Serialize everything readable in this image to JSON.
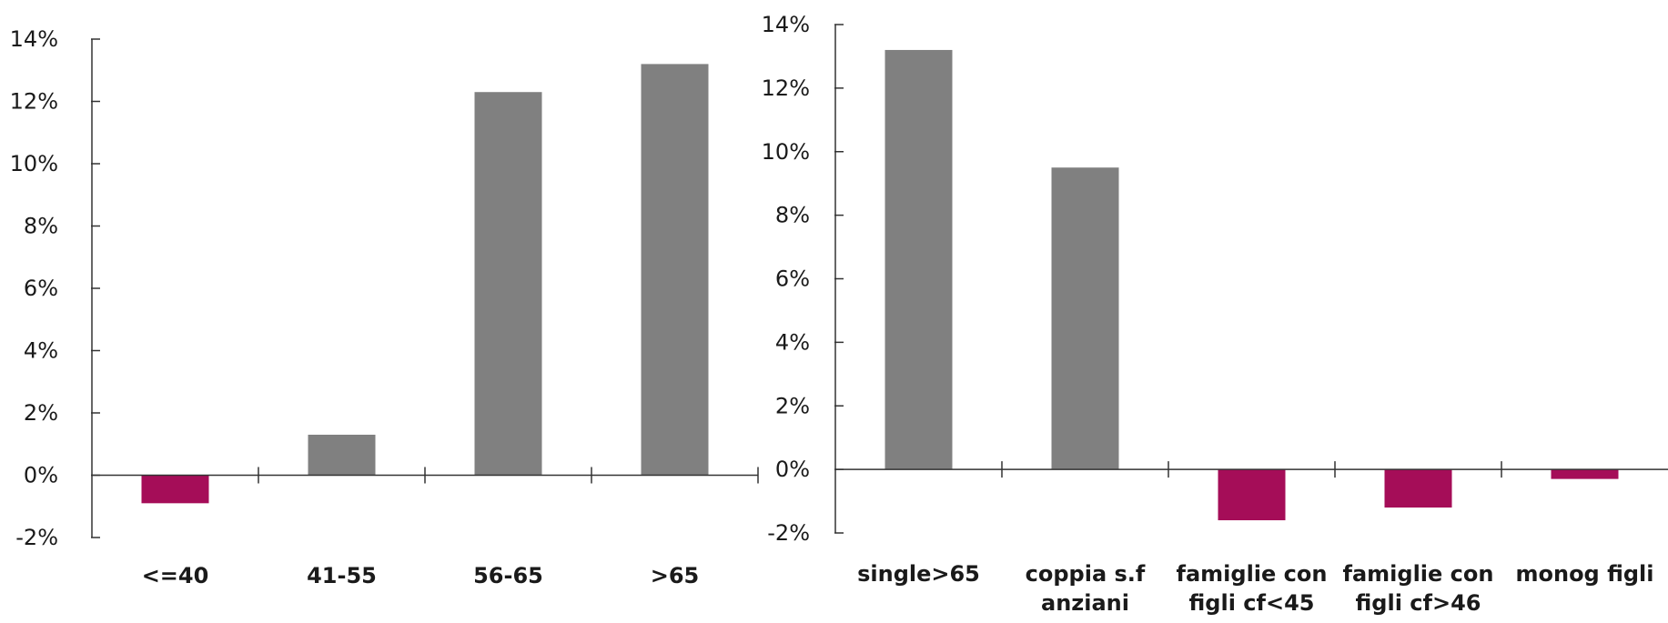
{
  "chart_data": [
    {
      "type": "bar",
      "categories": [
        "<=40",
        "41-55",
        "56-65",
        ">65"
      ],
      "category_lines": [
        [
          "<=40"
        ],
        [
          "41-55"
        ],
        [
          "56-65"
        ],
        [
          ">65"
        ]
      ],
      "values": [
        -0.9,
        1.3,
        12.3,
        13.2
      ],
      "unit": "%",
      "ylim": [
        -2,
        14
      ],
      "yticks": [
        -2,
        0,
        2,
        4,
        6,
        8,
        10,
        12,
        14
      ],
      "ytick_labels": [
        "-2%",
        "0%",
        "2%",
        "4%",
        "6%",
        "8%",
        "10%",
        "12%",
        "14%"
      ],
      "colors": {
        "positive": "#808080",
        "negative": "#a50d58",
        "axis": "#333333"
      },
      "grid": false,
      "title": "",
      "xlabel": "",
      "ylabel": ""
    },
    {
      "type": "bar",
      "categories": [
        "single>65",
        "coppia s.f anziani",
        "famiglie con figli cf<45",
        "famiglie con figli cf>46",
        "monog figli"
      ],
      "category_lines": [
        [
          "single>65"
        ],
        [
          "coppia s.f",
          "anziani"
        ],
        [
          "famiglie con",
          "figli cf<45"
        ],
        [
          "famiglie con",
          "figli cf>46"
        ],
        [
          "monog figli"
        ]
      ],
      "values": [
        13.2,
        9.5,
        -1.6,
        -1.2,
        -0.3
      ],
      "unit": "%",
      "ylim": [
        -2,
        14
      ],
      "yticks": [
        -2,
        0,
        2,
        4,
        6,
        8,
        10,
        12,
        14
      ],
      "ytick_labels": [
        "-2%",
        "0%",
        "2%",
        "4%",
        "6%",
        "8%",
        "10%",
        "12%",
        "14%"
      ],
      "colors": {
        "positive": "#808080",
        "negative": "#a50d58",
        "axis": "#333333"
      },
      "grid": false,
      "title": "",
      "xlabel": "",
      "ylabel": ""
    }
  ]
}
